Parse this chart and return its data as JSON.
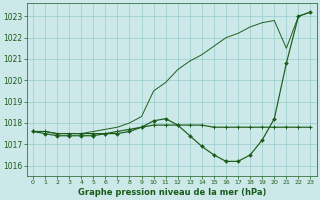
{
  "bg_color": "#cce8e8",
  "grid_color": "#99cccc",
  "line_color": "#1a5c1a",
  "xlabel": "Graphe pression niveau de la mer (hPa)",
  "ylim": [
    1015.5,
    1023.6
  ],
  "xlim": [
    -0.5,
    23.5
  ],
  "yticks": [
    1016,
    1017,
    1018,
    1019,
    1020,
    1021,
    1022,
    1023
  ],
  "xticks": [
    0,
    1,
    2,
    3,
    4,
    5,
    6,
    7,
    8,
    9,
    10,
    11,
    12,
    13,
    14,
    15,
    16,
    17,
    18,
    19,
    20,
    21,
    22,
    23
  ],
  "series_flat_x": [
    0,
    1,
    2,
    3,
    4,
    5,
    6,
    7,
    8,
    9,
    10,
    11,
    12,
    13,
    14,
    15,
    16,
    17,
    18,
    19,
    20,
    21,
    22,
    23
  ],
  "series_flat_y": [
    1017.6,
    1017.6,
    1017.5,
    1017.5,
    1017.5,
    1017.5,
    1017.5,
    1017.6,
    1017.7,
    1017.8,
    1017.9,
    1017.9,
    1017.9,
    1017.9,
    1017.9,
    1017.8,
    1017.8,
    1017.8,
    1017.8,
    1017.8,
    1017.8,
    1017.8,
    1017.8,
    1017.8
  ],
  "series_dip_x": [
    0,
    1,
    2,
    3,
    4,
    5,
    6,
    7,
    8,
    9,
    10,
    11,
    12,
    13,
    14,
    15,
    16,
    17,
    18,
    19,
    20,
    21,
    22,
    23
  ],
  "series_dip_y": [
    1017.6,
    1017.5,
    1017.4,
    1017.4,
    1017.4,
    1017.4,
    1017.5,
    1017.5,
    1017.6,
    1017.8,
    1018.1,
    1018.2,
    1017.9,
    1017.4,
    1016.9,
    1016.5,
    1016.2,
    1016.2,
    1016.5,
    1017.2,
    1018.2,
    1020.8,
    1023.0,
    1023.2
  ],
  "series_rise_x": [
    0,
    1,
    2,
    3,
    4,
    5,
    6,
    7,
    8,
    9,
    10,
    11,
    12,
    13,
    14,
    15,
    16,
    17,
    18,
    19,
    20,
    21,
    22,
    23
  ],
  "series_rise_y": [
    1017.6,
    1017.6,
    1017.5,
    1017.5,
    1017.5,
    1017.6,
    1017.7,
    1017.8,
    1018.0,
    1018.3,
    1019.5,
    1019.9,
    1020.5,
    1020.9,
    1021.2,
    1021.6,
    1022.0,
    1022.2,
    1022.5,
    1022.7,
    1022.8,
    1021.5,
    1023.0,
    1023.2
  ],
  "marker_style": "+",
  "marker_size": 3.5,
  "linewidth": 0.85
}
